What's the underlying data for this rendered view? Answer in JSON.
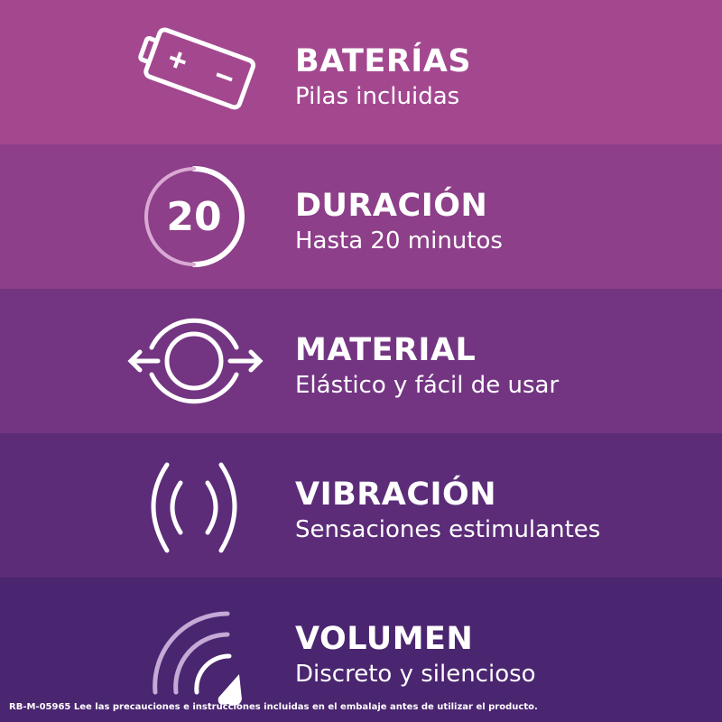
{
  "colors": {
    "band1": "#a3488f",
    "band2": "#8d3f89",
    "band3": "#733582",
    "band4": "#5c2c78",
    "band5": "#4a2570"
  },
  "features": [
    {
      "title": "BATERÍAS",
      "subtitle": "Pilas incluidas",
      "icon": "battery-icon"
    },
    {
      "title": "DURACIÓN",
      "subtitle": "Hasta 20 minutos",
      "icon": "timer-20-icon",
      "icon_text": "20"
    },
    {
      "title": "MATERIAL",
      "subtitle": "Elástico y fácil de usar",
      "icon": "stretch-ring-icon"
    },
    {
      "title": "VIBRACIÓN",
      "subtitle": "Sensaciones estimulantes",
      "icon": "vibration-icon"
    },
    {
      "title": "VOLUMEN",
      "subtitle": "Discreto y silencioso",
      "icon": "volume-icon"
    }
  ],
  "footer": "RB-M-05965  Lee las precauciones e instrucciones incluidas en el embalaje antes de utilizar el producto."
}
